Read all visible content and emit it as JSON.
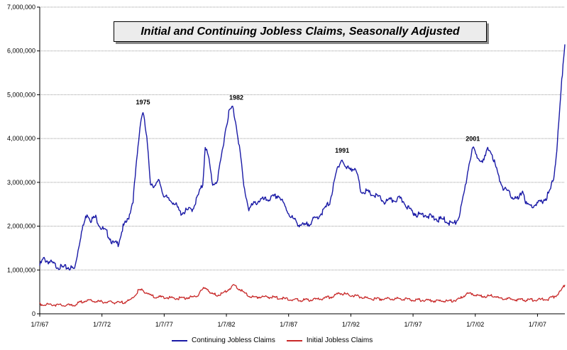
{
  "chart_data": {
    "type": "line",
    "title": "Initial and Continuing Jobless Claims, Seasonally Adjusted",
    "ylim": [
      0,
      7000000
    ],
    "y_ticks": [
      "0",
      "1,000,000",
      "2,000,000",
      "3,000,000",
      "4,000,000",
      "5,000,000",
      "6,000,000",
      "7,000,000"
    ],
    "y_tick_values": [
      0,
      1000000,
      2000000,
      3000000,
      4000000,
      5000000,
      6000000,
      7000000
    ],
    "x_range": [
      1967.0,
      2009.2
    ],
    "x_ticks": [
      "1/7/67",
      "1/7/72",
      "1/7/77",
      "1/7/82",
      "1/7/87",
      "1/7/92",
      "1/7/97",
      "1/7/02",
      "1/7/07"
    ],
    "x_tick_values": [
      1967,
      1972,
      1977,
      1982,
      1987,
      1992,
      1997,
      2002,
      2007
    ],
    "grid": "horizontal",
    "legend_position": "bottom",
    "annotations": [
      {
        "text": "1975",
        "x": 1975.3,
        "y": 4620000
      },
      {
        "text": "1982",
        "x": 1982.8,
        "y": 4720000
      },
      {
        "text": "1991",
        "x": 1991.3,
        "y": 3520000
      },
      {
        "text": "2001",
        "x": 2001.8,
        "y": 3780000
      }
    ],
    "series": [
      {
        "name": "Continuing Jobless Claims",
        "color": "#1a1aa6",
        "x": [
          1967.0,
          1967.3,
          1967.8,
          1968.3,
          1968.8,
          1969.3,
          1969.8,
          1970.3,
          1970.8,
          1971.1,
          1971.5,
          1971.9,
          1972.4,
          1972.9,
          1973.3,
          1973.7,
          1974.1,
          1974.5,
          1974.9,
          1975.1,
          1975.3,
          1975.6,
          1975.9,
          1976.3,
          1976.6,
          1976.9,
          1977.3,
          1977.8,
          1978.3,
          1978.8,
          1979.3,
          1979.8,
          1980.1,
          1980.3,
          1980.6,
          1980.9,
          1981.3,
          1981.6,
          1981.9,
          1982.2,
          1982.5,
          1982.8,
          1983.1,
          1983.4,
          1983.8,
          1984.2,
          1984.7,
          1985.2,
          1985.7,
          1986.2,
          1986.6,
          1987.0,
          1987.4,
          1987.8,
          1988.3,
          1988.8,
          1989.3,
          1989.8,
          1990.3,
          1990.6,
          1990.9,
          1991.1,
          1991.3,
          1991.6,
          1991.9,
          1992.2,
          1992.5,
          1992.8,
          1993.1,
          1993.5,
          1993.9,
          1994.3,
          1994.7,
          1995.1,
          1995.5,
          1995.9,
          1996.3,
          1996.7,
          1997.1,
          1997.5,
          1997.9,
          1998.3,
          1998.7,
          1999.1,
          1999.5,
          1999.9,
          2000.3,
          2000.6,
          2000.9,
          2001.2,
          2001.5,
          2001.8,
          2002.1,
          2002.4,
          2002.7,
          2003.0,
          2003.3,
          2003.6,
          2003.9,
          2004.3,
          2004.7,
          2005.1,
          2005.5,
          2005.8,
          2006.1,
          2006.5,
          2006.9,
          2007.3,
          2007.7,
          2008.0,
          2008.3,
          2008.5,
          2008.7,
          2008.9,
          2009.05,
          2009.2
        ],
        "values": [
          1100000,
          1250000,
          1180000,
          1100000,
          1050000,
          1060000,
          1020000,
          1800000,
          2300000,
          2150000,
          2200000,
          1980000,
          1850000,
          1600000,
          1600000,
          1980000,
          2150000,
          2600000,
          3800000,
          4400000,
          4620000,
          4000000,
          3000000,
          2900000,
          3050000,
          2750000,
          2600000,
          2550000,
          2300000,
          2350000,
          2400000,
          2750000,
          2950000,
          3850000,
          3500000,
          2950000,
          3050000,
          3600000,
          4150000,
          4600000,
          4720000,
          4300000,
          3700000,
          2900000,
          2400000,
          2500000,
          2600000,
          2600000,
          2650000,
          2700000,
          2500000,
          2300000,
          2150000,
          2050000,
          2000000,
          2100000,
          2200000,
          2350000,
          2550000,
          2900000,
          3300000,
          3450000,
          3520000,
          3300000,
          3350000,
          3300000,
          3200000,
          2800000,
          2800000,
          2750000,
          2700000,
          2650000,
          2550000,
          2580000,
          2600000,
          2620000,
          2550000,
          2380000,
          2300000,
          2250000,
          2280000,
          2220000,
          2180000,
          2150000,
          2150000,
          2080000,
          2050000,
          2150000,
          2450000,
          2900000,
          3450000,
          3780000,
          3600000,
          3550000,
          3500000,
          3750000,
          3700000,
          3400000,
          3100000,
          2850000,
          2750000,
          2650000,
          2600000,
          2850000,
          2500000,
          2450000,
          2500000,
          2550000,
          2650000,
          2800000,
          3100000,
          3600000,
          4300000,
          5100000,
          5700000,
          6150000
        ]
      },
      {
        "name": "Initial Jobless Claims",
        "color": "#c82828",
        "x": [
          1967.0,
          1968.0,
          1969.0,
          1969.8,
          1970.5,
          1971.0,
          1971.6,
          1972.2,
          1972.8,
          1973.5,
          1974.2,
          1974.6,
          1974.9,
          1975.2,
          1975.6,
          1976.2,
          1977.0,
          1978.0,
          1979.0,
          1979.6,
          1980.1,
          1980.4,
          1980.8,
          1981.3,
          1981.8,
          1982.2,
          1982.6,
          1982.9,
          1983.4,
          1984.0,
          1985.0,
          1986.0,
          1987.0,
          1988.0,
          1989.0,
          1990.0,
          1990.6,
          1991.1,
          1991.5,
          1992.0,
          1992.6,
          1993.3,
          1994.0,
          1995.0,
          1996.0,
          1997.0,
          1998.0,
          1999.0,
          2000.0,
          2000.7,
          2001.3,
          2001.7,
          2002.2,
          2002.8,
          2003.4,
          2004.0,
          2005.0,
          2006.0,
          2007.0,
          2007.8,
          2008.2,
          2008.6,
          2008.9,
          2009.05,
          2009.2
        ],
        "values": [
          220000,
          210000,
          190000,
          200000,
          290000,
          300000,
          280000,
          270000,
          260000,
          250000,
          300000,
          400000,
          520000,
          540000,
          480000,
          380000,
          380000,
          350000,
          370000,
          400000,
          560000,
          600000,
          450000,
          430000,
          480000,
          560000,
          650000,
          600000,
          480000,
          380000,
          390000,
          370000,
          330000,
          310000,
          320000,
          360000,
          400000,
          480000,
          450000,
          420000,
          400000,
          350000,
          340000,
          340000,
          350000,
          320000,
          310000,
          290000,
          290000,
          330000,
          450000,
          470000,
          410000,
          400000,
          420000,
          350000,
          330000,
          310000,
          320000,
          330000,
          370000,
          440000,
          530000,
          600000,
          660000
        ]
      }
    ]
  }
}
